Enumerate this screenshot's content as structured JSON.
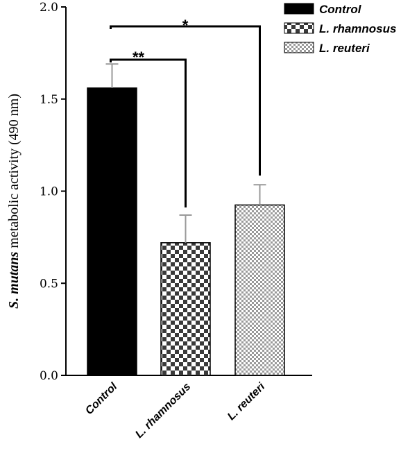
{
  "chart_data": {
    "type": "bar",
    "categories": [
      "Control",
      "L. rhamnosus",
      "L. reuteri"
    ],
    "values": [
      1.56,
      0.72,
      0.925
    ],
    "errors": [
      0.13,
      0.15,
      0.11
    ],
    "ylabel_italic": "S. mutans",
    "ylabel_rest": " metabolic activity (490 nm)",
    "ylim": [
      0,
      2.0
    ],
    "yticks": [
      "0.0",
      "0.5",
      "1.0",
      "1.5",
      "2.0"
    ],
    "legend": [
      {
        "label": "Control",
        "pattern": "solid"
      },
      {
        "label": "L. rhamnosus",
        "pattern": "checker-dark"
      },
      {
        "label": "L. reuteri",
        "pattern": "checker-light"
      }
    ],
    "legend_position": "top-right",
    "significance": [
      {
        "from": 0,
        "to": 1,
        "label": "**"
      },
      {
        "from": 0,
        "to": 2,
        "label": "*"
      }
    ],
    "colors": {
      "control": "#000000",
      "dark_check": "#3a3a3a",
      "light_check": "#c8c8c8"
    }
  }
}
